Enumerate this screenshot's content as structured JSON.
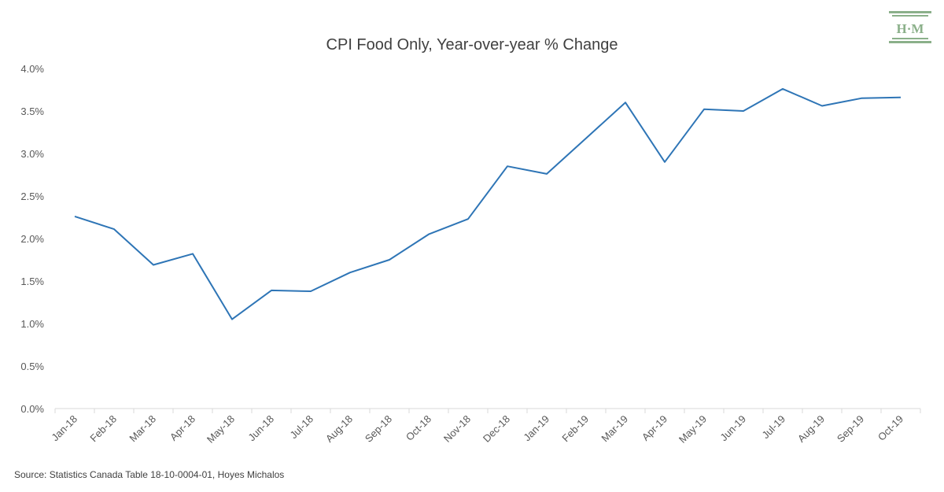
{
  "source_note": "Source: Statistics Canada Table 18-10-0004-01, Hoyes Michalos",
  "logo": {
    "text": "H·M",
    "color": "#8bb08a"
  },
  "chart_data": {
    "type": "line",
    "title": "CPI Food Only, Year-over-year % Change",
    "xlabel": "",
    "ylabel": "",
    "categories": [
      "Jan-18",
      "Feb-18",
      "Mar-18",
      "Apr-18",
      "May-18",
      "Jun-18",
      "Jul-18",
      "Aug-18",
      "Sep-18",
      "Oct-18",
      "Nov-18",
      "Dec-18",
      "Jan-19",
      "Feb-19",
      "Mar-19",
      "Apr-19",
      "May-19",
      "Jun-19",
      "Jul-19",
      "Aug-19",
      "Sep-19",
      "Oct-19"
    ],
    "series": [
      {
        "values": [
          2.26,
          2.11,
          1.69,
          1.82,
          1.05,
          1.39,
          1.38,
          1.6,
          1.75,
          2.05,
          2.23,
          2.85,
          2.76,
          3.18,
          3.6,
          2.9,
          3.52,
          3.5,
          3.76,
          3.56,
          3.65,
          3.66
        ],
        "color": "#2e75b6"
      }
    ],
    "ylim": [
      0,
      4.0
    ],
    "yticks": [
      "0.0%",
      "0.5%",
      "1.0%",
      "1.5%",
      "2.0%",
      "2.5%",
      "3.0%",
      "3.5%",
      "4.0%"
    ],
    "grid": false,
    "legend": "none"
  }
}
